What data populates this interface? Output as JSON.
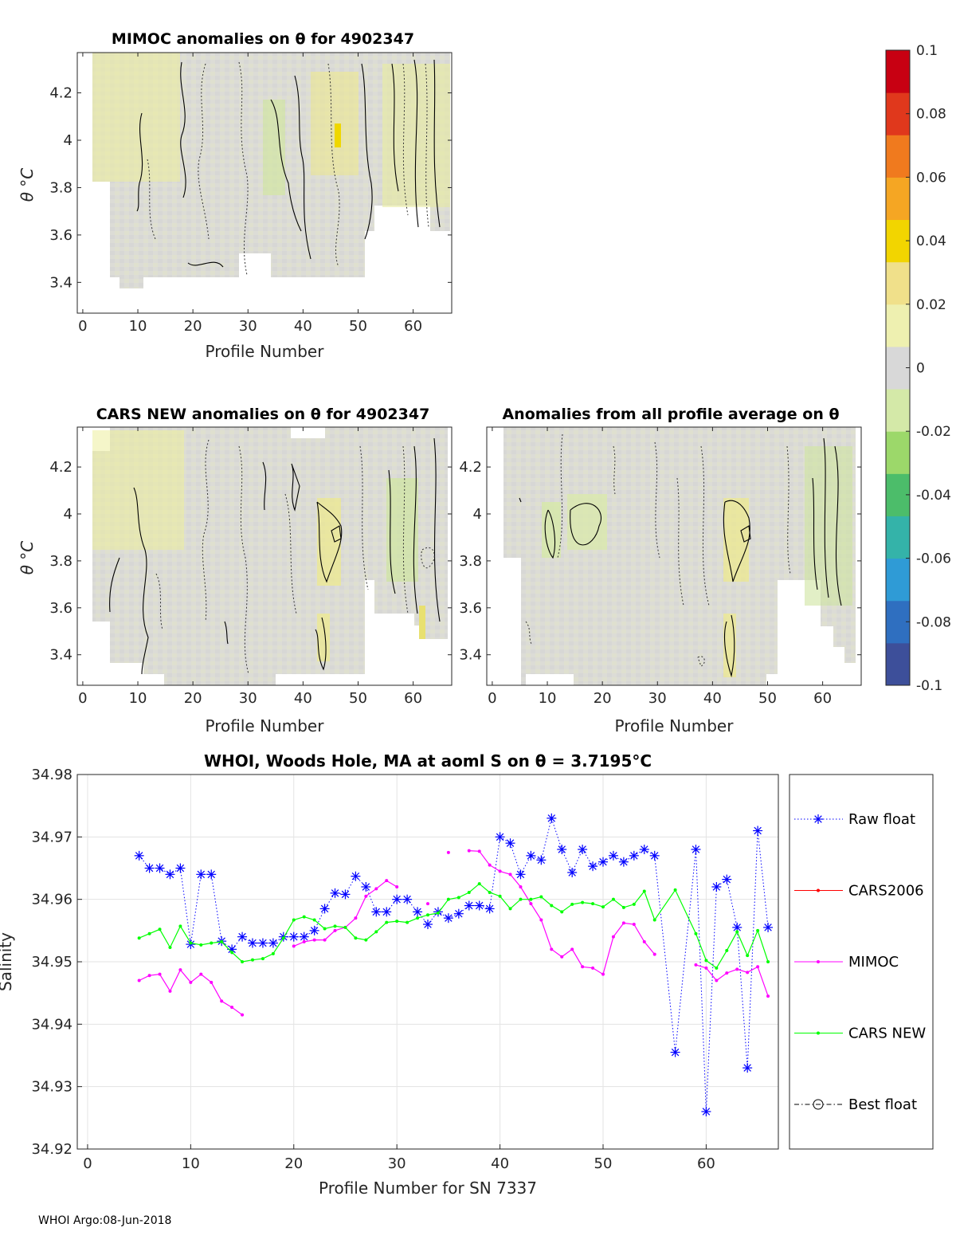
{
  "footer": "WHOI Argo:08-Jun-2018",
  "colorbar": {
    "ticks": [
      "0.1",
      "0.08",
      "0.06",
      "0.04",
      "0.02",
      "0",
      "-0.02",
      "-0.04",
      "-0.06",
      "-0.08",
      "-0.1"
    ],
    "range": [
      -0.1,
      0.1
    ],
    "colors": [
      "#3d4f9a",
      "#2f6fc0",
      "#2f9bd6",
      "#34b3a9",
      "#4cbd6a",
      "#9cd86a",
      "#d4e9a8",
      "#d8d8d8",
      "#eef0b0",
      "#f0e08a",
      "#f2d500",
      "#f5a623",
      "#f07a1e",
      "#e0381c",
      "#c80012"
    ]
  },
  "chart_data": [
    {
      "type": "heatmap",
      "title": "MIMOC anomalies on θ  for 4902347",
      "xlabel": "Profile Number",
      "ylabel": "θ °C",
      "xticks": [
        "0",
        "10",
        "20",
        "30",
        "40",
        "50",
        "60"
      ],
      "yticks": [
        "4.2",
        "4",
        "3.8",
        "3.6",
        "3.4"
      ],
      "xlim": [
        -1,
        67
      ],
      "ylim": [
        3.27,
        4.37
      ]
    },
    {
      "type": "heatmap",
      "title": "CARS NEW anomalies on θ for 4902347",
      "xlabel": "Profile Number",
      "ylabel": "θ °C",
      "xticks": [
        "0",
        "10",
        "20",
        "30",
        "40",
        "50",
        "60"
      ],
      "yticks": [
        "4.2",
        "4",
        "3.8",
        "3.6",
        "3.4"
      ],
      "xlim": [
        -1,
        67
      ],
      "ylim": [
        3.27,
        4.37
      ]
    },
    {
      "type": "heatmap",
      "title": "Anomalies from all profile average on θ",
      "xlabel": "Profile Number",
      "ylabel": "",
      "xticks": [
        "0",
        "10",
        "20",
        "30",
        "40",
        "50",
        "60"
      ],
      "yticks": [
        "4.2",
        "4",
        "3.8",
        "3.6",
        "3.4"
      ],
      "xlim": [
        -1,
        67
      ],
      "ylim": [
        3.27,
        4.37
      ]
    },
    {
      "type": "line",
      "title": "WHOI, Woods Hole, MA at aoml S on θ = 3.7195°C",
      "xlabel": "Profile Number for SN 7337",
      "ylabel": "Salinity",
      "xlim": [
        -1,
        67
      ],
      "ylim": [
        34.92,
        34.98
      ],
      "xticks": [
        "0",
        "10",
        "20",
        "30",
        "40",
        "50",
        "60"
      ],
      "yticks": [
        "34.98",
        "34.97",
        "34.96",
        "34.95",
        "34.94",
        "34.93",
        "34.92"
      ],
      "legend": [
        "Raw float",
        "CARS2006",
        "MIMOC",
        "CARS NEW",
        "Best float"
      ],
      "series": [
        {
          "name": "Raw float",
          "color": "#0000ff",
          "points": [
            [
              5,
              34.967
            ],
            [
              6,
              34.965
            ],
            [
              7,
              34.965
            ],
            [
              8,
              34.964
            ],
            [
              9,
              34.965
            ],
            [
              10,
              34.9528
            ],
            [
              11,
              34.964
            ],
            [
              12,
              34.964
            ],
            [
              13,
              34.9533
            ],
            [
              14,
              34.952
            ],
            [
              15,
              34.954
            ],
            [
              16,
              34.953
            ],
            [
              17,
              34.953
            ],
            [
              18,
              34.953
            ],
            [
              19,
              34.954
            ],
            [
              20,
              34.954
            ],
            [
              21,
              34.954
            ],
            [
              22,
              34.955
            ],
            [
              23,
              34.9585
            ],
            [
              24,
              34.961
            ],
            [
              25,
              34.9608
            ],
            [
              26,
              34.9637
            ],
            [
              27,
              34.962
            ],
            [
              28,
              34.958
            ],
            [
              29,
              34.958
            ],
            [
              30,
              34.96
            ],
            [
              31,
              34.96
            ],
            [
              32,
              34.958
            ],
            [
              33,
              34.956
            ],
            [
              34,
              34.958
            ],
            [
              35,
              34.957
            ],
            [
              36,
              34.9577
            ],
            [
              37,
              34.959
            ],
            [
              38,
              34.959
            ],
            [
              39,
              34.9585
            ],
            [
              40,
              34.97
            ],
            [
              41,
              34.969
            ],
            [
              42,
              34.964
            ],
            [
              43,
              34.967
            ],
            [
              44,
              34.9663
            ],
            [
              45,
              34.973
            ],
            [
              46,
              34.968
            ],
            [
              47,
              34.9643
            ],
            [
              48,
              34.968
            ],
            [
              49,
              34.9653
            ],
            [
              50,
              34.966
            ],
            [
              51,
              34.967
            ],
            [
              52,
              34.966
            ],
            [
              53,
              34.967
            ],
            [
              54,
              34.968
            ],
            [
              55,
              34.967
            ],
            [
              57,
              34.9355
            ],
            [
              59,
              34.968
            ],
            [
              60,
              34.926
            ],
            [
              61,
              34.962
            ],
            [
              62,
              34.9632
            ],
            [
              63,
              34.9555
            ],
            [
              64,
              34.933
            ],
            [
              65,
              34.971
            ],
            [
              66,
              34.9555
            ]
          ]
        },
        {
          "name": "MIMOC",
          "color": "#ff00ff",
          "segments": [
            [
              [
                5,
                34.947
              ],
              [
                6,
                34.9478
              ],
              [
                7,
                34.948
              ],
              [
                8,
                34.9453
              ],
              [
                9,
                34.9487
              ],
              [
                10,
                34.9467
              ],
              [
                11,
                34.948
              ],
              [
                12,
                34.9467
              ],
              [
                13,
                34.9437
              ],
              [
                14,
                34.9427
              ],
              [
                15,
                34.9415
              ]
            ],
            [
              [
                20,
                34.9525
              ],
              [
                21,
                34.9532
              ],
              [
                22,
                34.9535
              ],
              [
                23,
                34.9535
              ],
              [
                24,
                34.955
              ],
              [
                25,
                34.9555
              ],
              [
                26,
                34.957
              ],
              [
                27,
                34.9605
              ],
              [
                28,
                34.9617
              ],
              [
                29,
                34.963
              ],
              [
                30,
                34.962
              ]
            ],
            [
              [
                33,
                34.9593
              ]
            ],
            [
              [
                35,
                34.9675
              ]
            ],
            [
              [
                37,
                34.9678
              ],
              [
                38,
                34.9677
              ],
              [
                39,
                34.9655
              ],
              [
                40,
                34.9645
              ],
              [
                41,
                34.964
              ],
              [
                42,
                34.962
              ],
              [
                43,
                34.9593
              ],
              [
                44,
                34.9567
              ],
              [
                45,
                34.952
              ],
              [
                46,
                34.9508
              ],
              [
                47,
                34.952
              ],
              [
                48,
                34.9492
              ],
              [
                49,
                34.949
              ],
              [
                50,
                34.948
              ],
              [
                51,
                34.954
              ],
              [
                52,
                34.9562
              ],
              [
                53,
                34.956
              ],
              [
                54,
                34.9532
              ],
              [
                55,
                34.9512
              ]
            ],
            [
              [
                59,
                34.9495
              ],
              [
                60,
                34.949
              ],
              [
                61,
                34.947
              ],
              [
                62,
                34.9482
              ],
              [
                63,
                34.9488
              ],
              [
                64,
                34.9483
              ],
              [
                65,
                34.9492
              ],
              [
                66,
                34.9445
              ]
            ]
          ]
        },
        {
          "name": "CARS NEW",
          "color": "#00ff00",
          "points": [
            [
              5,
              34.9538
            ],
            [
              6,
              34.9545
            ],
            [
              7,
              34.9552
            ],
            [
              8,
              34.9523
            ],
            [
              9,
              34.9557
            ],
            [
              10,
              34.953
            ],
            [
              11,
              34.9527
            ],
            [
              12,
              34.953
            ],
            [
              13,
              34.9532
            ],
            [
              14,
              34.9515
            ],
            [
              15,
              34.95
            ],
            [
              16,
              34.9503
            ],
            [
              17,
              34.9505
            ],
            [
              18,
              34.9513
            ],
            [
              19,
              34.9538
            ],
            [
              20,
              34.9567
            ],
            [
              21,
              34.9572
            ],
            [
              22,
              34.9567
            ],
            [
              23,
              34.9553
            ],
            [
              24,
              34.9557
            ],
            [
              25,
              34.9555
            ],
            [
              26,
              34.9538
            ],
            [
              27,
              34.9535
            ],
            [
              28,
              34.9548
            ],
            [
              29,
              34.9563
            ],
            [
              30,
              34.9565
            ],
            [
              31,
              34.9563
            ],
            [
              32,
              34.957
            ],
            [
              33,
              34.9575
            ],
            [
              34,
              34.9578
            ],
            [
              35,
              34.96
            ],
            [
              36,
              34.9603
            ],
            [
              37,
              34.9611
            ],
            [
              38,
              34.9625
            ],
            [
              39,
              34.9611
            ],
            [
              40,
              34.9605
            ],
            [
              41,
              34.9585
            ],
            [
              42,
              34.96
            ],
            [
              43,
              34.96
            ],
            [
              44,
              34.9604
            ],
            [
              45,
              34.959
            ],
            [
              46,
              34.958
            ],
            [
              47,
              34.9592
            ],
            [
              48,
              34.9595
            ],
            [
              49,
              34.9593
            ],
            [
              50,
              34.9588
            ],
            [
              51,
              34.96
            ],
            [
              52,
              34.9587
            ],
            [
              53,
              34.9592
            ],
            [
              54,
              34.9613
            ],
            [
              55,
              34.9567
            ],
            [
              57,
              34.9615
            ],
            [
              59,
              34.9545
            ],
            [
              60,
              34.9502
            ],
            [
              61,
              34.949
            ],
            [
              62,
              34.9518
            ],
            [
              63,
              34.9548
            ],
            [
              64,
              34.951
            ],
            [
              65,
              34.955
            ],
            [
              66,
              34.95
            ]
          ]
        }
      ]
    }
  ]
}
